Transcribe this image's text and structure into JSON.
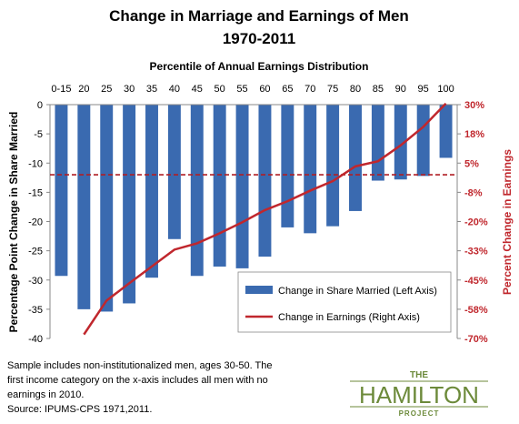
{
  "chart_data": {
    "type": "bar",
    "title_line1": "Change in Marriage and Earnings of Men",
    "title_line2": "1970-2011",
    "xlabel": "Percentile of Annual Earnings Distribution",
    "ylabel_left": "Percentage Point Change in Share Married",
    "ylabel_right": "Percent Change in Earnings",
    "categories": [
      "0-15",
      "20",
      "25",
      "30",
      "35",
      "40",
      "45",
      "50",
      "55",
      "60",
      "65",
      "70",
      "75",
      "80",
      "85",
      "90",
      "95",
      "100"
    ],
    "left_ticks": [
      "0",
      "-5",
      "-10",
      "-15",
      "-20",
      "-25",
      "-30",
      "-35",
      "-40"
    ],
    "right_ticks": [
      "30%",
      "18%",
      "5%",
      "-8%",
      "-20%",
      "-33%",
      "-45%",
      "-58%",
      "-70%"
    ],
    "ylim_left": [
      -40,
      0
    ],
    "ylim_right": [
      -70,
      30
    ],
    "zero_reference_right": 0,
    "series": [
      {
        "name": "Change in Share Married (Left Axis)",
        "kind": "bar",
        "axis": "left",
        "color": "#3a6ab0",
        "values": [
          -29.3,
          -35.0,
          -35.4,
          -34.0,
          -29.6,
          -23.0,
          -29.3,
          -27.7,
          -28.0,
          -26.0,
          -21.0,
          -22.0,
          -20.8,
          -18.2,
          -13.0,
          -12.8,
          -12.2,
          -9.1
        ]
      },
      {
        "name": "Change in Earnings (Right Axis)",
        "kind": "line",
        "axis": "right",
        "color": "#c0272d",
        "values": [
          null,
          -68.3,
          -53.8,
          -46.4,
          -39.2,
          -32.0,
          -29.3,
          -25.0,
          -20.3,
          -15.1,
          -11.3,
          -6.8,
          -2.7,
          3.6,
          5.8,
          12.6,
          20.5,
          30.5
        ]
      }
    ],
    "legend_position": "bottom-right"
  },
  "notes": {
    "line1": "Sample includes non-institutionalized  men, ages 30-50. The",
    "line2": "first income category on the x-axis includes all men with no",
    "line3": "earnings in 2010.",
    "line4": "Source: IPUMS-CPS 1971,2011."
  },
  "logo": {
    "the": "THE",
    "hamilton": "HAMILTON",
    "project": "PROJECT",
    "color": "#6c8a3a"
  }
}
